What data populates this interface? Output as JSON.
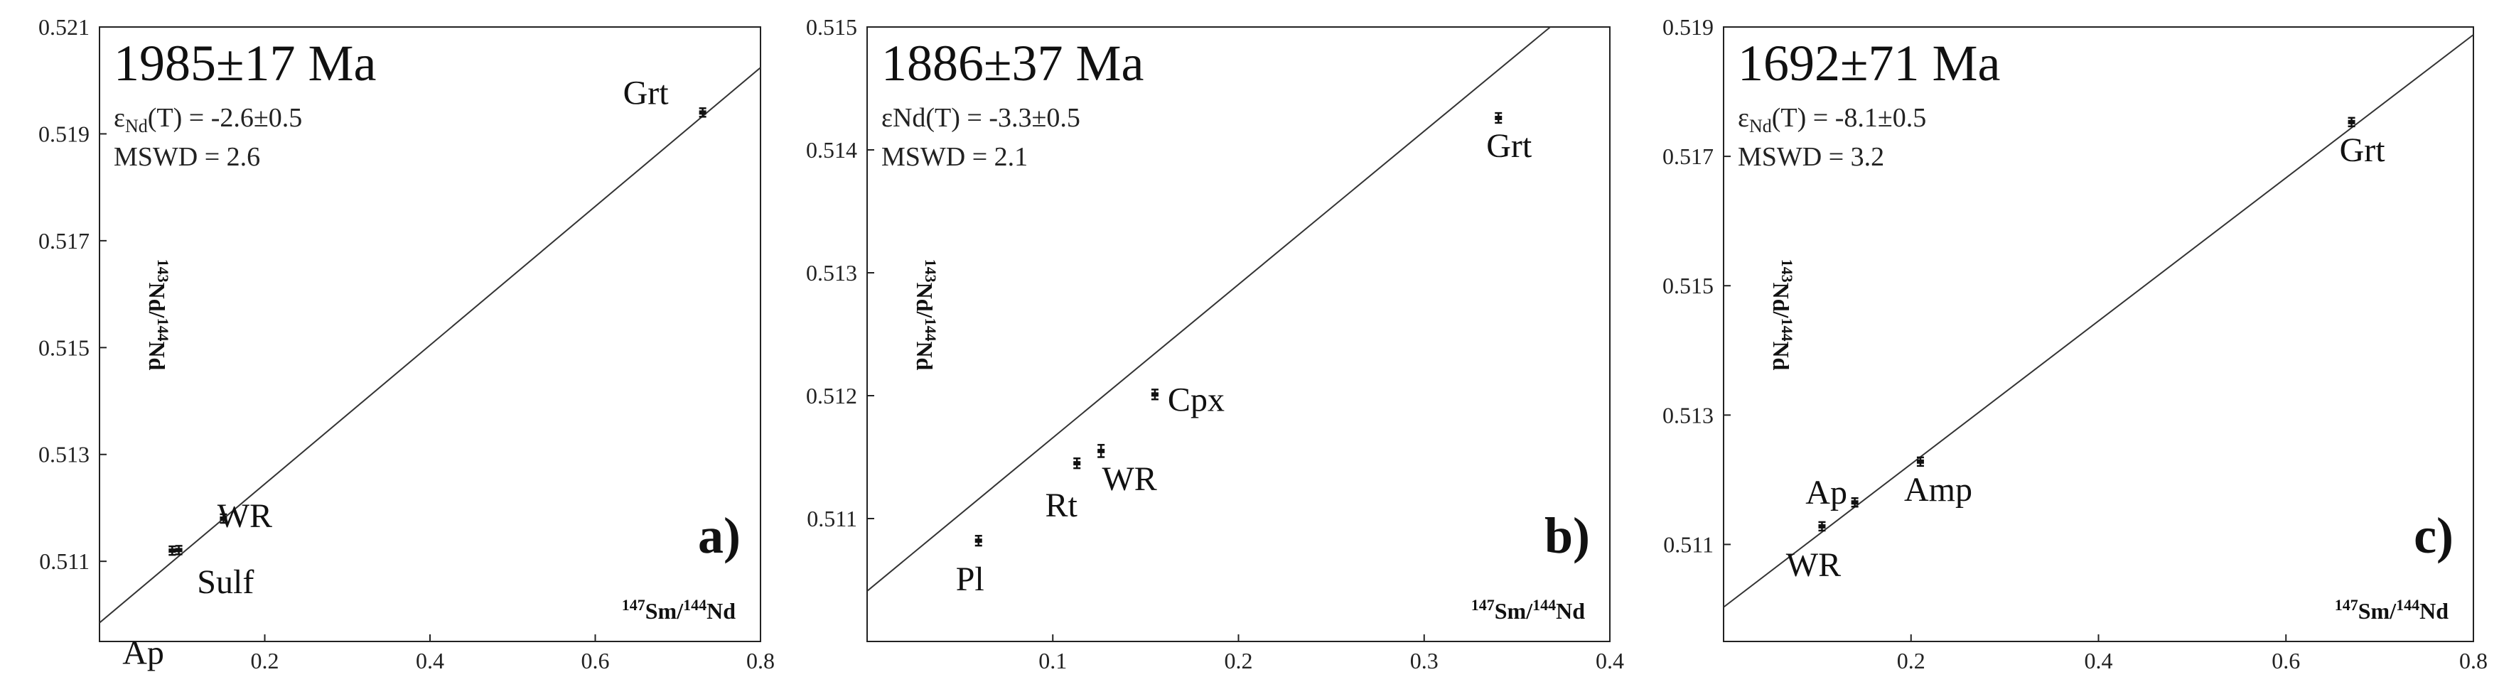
{
  "chart_data": [
    {
      "type": "scatter",
      "panel": "a)",
      "age": "1985±17 Ma",
      "epsilon": {
        "prefix": "ε",
        "sub": "Nd",
        "rest": "(T) = -2.6±0.5"
      },
      "mswd": "MSWD = 2.6",
      "xlabel": {
        "mass1": "147",
        "el1": "Sm/",
        "mass2": "144",
        "el2": "Nd"
      },
      "ylabel": {
        "mass1": "143",
        "el1": "Nd/",
        "mass2": "144",
        "el2": "Nd"
      },
      "xlim": [
        0,
        0.8
      ],
      "ylim": [
        0.5095,
        0.521
      ],
      "xticks": [
        {
          "v": 0.2,
          "t": "0.2"
        },
        {
          "v": 0.4,
          "t": "0.4"
        },
        {
          "v": 0.6,
          "t": "0.6"
        },
        {
          "v": 0.8,
          "t": "0.8"
        }
      ],
      "yticks": [
        {
          "v": 0.511,
          "t": "0.511"
        },
        {
          "v": 0.513,
          "t": "0.513"
        },
        {
          "v": 0.515,
          "t": "0.515"
        },
        {
          "v": 0.517,
          "t": "0.517"
        },
        {
          "v": 0.519,
          "t": "0.519"
        },
        {
          "v": 0.521,
          "t": "0.521"
        }
      ],
      "isochron": {
        "x": [
          0,
          0.8
        ],
        "y": [
          0.50985,
          0.52024
        ]
      },
      "points": [
        {
          "label": "Grt",
          "x": 0.73,
          "y": 0.5194,
          "err": 6e-05
        },
        {
          "label": "WR",
          "x": 0.15,
          "y": 0.5118,
          "err": 6e-05
        },
        {
          "label": "Sulf",
          "x": 0.088,
          "y": 0.5112,
          "err": 6e-05
        },
        {
          "label": "Ap",
          "x": 0.096,
          "y": 0.51121,
          "err": 6e-05
        }
      ]
    },
    {
      "type": "scatter",
      "panel": "b)",
      "age": "1886±37 Ma",
      "epsilon": {
        "prefix": "εNd",
        "sub": "",
        "rest": "(T) = -3.3±0.5"
      },
      "mswd": "MSWD = 2.1",
      "xlabel": {
        "mass1": "147",
        "el1": "Sm/",
        "mass2": "144",
        "el2": "Nd"
      },
      "ylabel": {
        "mass1": "143",
        "el1": "Nd/",
        "mass2": "144",
        "el2": "Nd"
      },
      "xlim": [
        0,
        0.4
      ],
      "ylim": [
        0.51,
        0.515
      ],
      "xticks": [
        {
          "v": 0.1,
          "t": "0.1"
        },
        {
          "v": 0.2,
          "t": "0.2"
        },
        {
          "v": 0.3,
          "t": "0.3"
        },
        {
          "v": 0.4,
          "t": "0.4"
        }
      ],
      "yticks": [
        {
          "v": 0.511,
          "t": "0.511"
        },
        {
          "v": 0.512,
          "t": "0.512"
        },
        {
          "v": 0.513,
          "t": "0.513"
        },
        {
          "v": 0.514,
          "t": "0.514"
        },
        {
          "v": 0.515,
          "t": "0.515"
        }
      ],
      "isochron": {
        "x": [
          0,
          0.4
        ],
        "y": [
          0.51041,
          0.5154
        ]
      },
      "points": [
        {
          "label": "Grt",
          "x": 0.34,
          "y": 0.51426,
          "err": 4e-05
        },
        {
          "label": "Cpx",
          "x": 0.155,
          "y": 0.51201,
          "err": 4e-05
        },
        {
          "label": "WR",
          "x": 0.126,
          "y": 0.51155,
          "err": 5e-05
        },
        {
          "label": "Rt",
          "x": 0.113,
          "y": 0.51145,
          "err": 4e-05
        },
        {
          "label": "Pl",
          "x": 0.06,
          "y": 0.51082,
          "err": 4e-05
        }
      ]
    },
    {
      "type": "scatter",
      "panel": "c)",
      "age": "1692±71 Ma",
      "epsilon": {
        "prefix": "ε",
        "sub": "Nd",
        "rest": "(T) = -8.1±0.5"
      },
      "mswd": "MSWD = 3.2",
      "xlabel": {
        "mass1": "147",
        "el1": "Sm/",
        "mass2": "144",
        "el2": "Nd"
      },
      "ylabel": {
        "mass1": "143",
        "el1": "Nd/",
        "mass2": "144",
        "el2": "Nd"
      },
      "xlim": [
        0,
        0.8
      ],
      "ylim": [
        0.5095,
        0.519
      ],
      "xticks": [
        {
          "v": 0.2,
          "t": "0.2"
        },
        {
          "v": 0.4,
          "t": "0.4"
        },
        {
          "v": 0.6,
          "t": "0.6"
        },
        {
          "v": 0.8,
          "t": "0.8"
        }
      ],
      "yticks": [
        {
          "v": 0.511,
          "t": "0.511"
        },
        {
          "v": 0.513,
          "t": "0.513"
        },
        {
          "v": 0.515,
          "t": "0.515"
        },
        {
          "v": 0.517,
          "t": "0.517"
        },
        {
          "v": 0.519,
          "t": "0.519"
        }
      ],
      "isochron": {
        "x": [
          0,
          0.8
        ],
        "y": [
          0.51003,
          0.51888
        ]
      },
      "points": [
        {
          "label": "Grt",
          "x": 0.67,
          "y": 0.51753,
          "err": 4e-05
        },
        {
          "label": "Amp",
          "x": 0.21,
          "y": 0.51228,
          "err": 5e-05
        },
        {
          "label": "Ap",
          "x": 0.14,
          "y": 0.51165,
          "err": 4e-05
        },
        {
          "label": "WR",
          "x": 0.105,
          "y": 0.51128,
          "err": 4e-05
        }
      ]
    }
  ]
}
